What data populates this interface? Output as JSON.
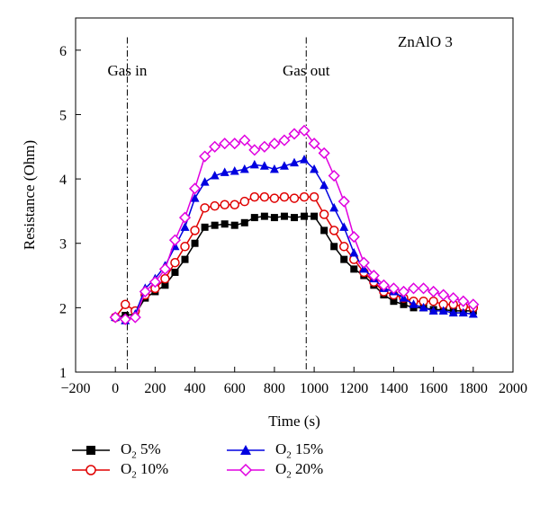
{
  "chart_data": {
    "type": "line",
    "annotation_title": "ZnAlO 3",
    "xlabel": "Time (s)",
    "ylabel": "Resistance (Ohm)",
    "xlim": [
      -200,
      2000
    ],
    "ylim": [
      1,
      6.5
    ],
    "xticks": [
      -200,
      0,
      200,
      400,
      600,
      800,
      1000,
      1200,
      1400,
      1600,
      1800,
      2000
    ],
    "xtick_labels": [
      "−200",
      "0",
      "200",
      "400",
      "600",
      "800",
      "1000",
      "1200",
      "1400",
      "1600",
      "1800",
      "2000"
    ],
    "yticks": [
      1,
      2,
      3,
      4,
      5,
      6
    ],
    "ytick_labels": [
      "1",
      "2",
      "3",
      "4",
      "5",
      "6"
    ],
    "grid": false,
    "legend_position": "below",
    "vlines": [
      {
        "x": 60,
        "label": "Gas in"
      },
      {
        "x": 960,
        "label": "Gas out"
      }
    ],
    "series": [
      {
        "name": "O2 5%",
        "legend_text": "O",
        "legend_sub": "2",
        "legend_suffix": " 5%",
        "color": "#000000",
        "marker": "square-filled",
        "x": [
          0,
          50,
          100,
          150,
          200,
          250,
          300,
          350,
          400,
          450,
          500,
          550,
          600,
          650,
          700,
          750,
          800,
          850,
          900,
          950,
          1000,
          1050,
          1100,
          1150,
          1200,
          1250,
          1300,
          1350,
          1400,
          1450,
          1500,
          1550,
          1600,
          1650,
          1700,
          1750,
          1800
        ],
        "y": [
          1.85,
          1.88,
          1.9,
          2.15,
          2.25,
          2.35,
          2.55,
          2.75,
          3.0,
          3.25,
          3.28,
          3.3,
          3.28,
          3.32,
          3.4,
          3.42,
          3.4,
          3.42,
          3.4,
          3.42,
          3.42,
          3.2,
          2.95,
          2.75,
          2.6,
          2.5,
          2.35,
          2.2,
          2.1,
          2.05,
          2.0,
          2.0,
          1.97,
          1.97,
          1.95,
          1.95,
          1.95
        ]
      },
      {
        "name": "O2 10%",
        "legend_text": "O",
        "legend_sub": "2",
        "legend_suffix": " 10%",
        "color": "#e00000",
        "marker": "circle-open",
        "x": [
          0,
          50,
          100,
          150,
          200,
          250,
          300,
          350,
          400,
          450,
          500,
          550,
          600,
          650,
          700,
          750,
          800,
          850,
          900,
          950,
          1000,
          1050,
          1100,
          1150,
          1200,
          1250,
          1300,
          1350,
          1400,
          1450,
          1500,
          1550,
          1600,
          1650,
          1700,
          1750,
          1800
        ],
        "y": [
          1.85,
          2.05,
          1.95,
          2.2,
          2.3,
          2.45,
          2.7,
          2.95,
          3.2,
          3.55,
          3.58,
          3.6,
          3.6,
          3.65,
          3.72,
          3.72,
          3.7,
          3.72,
          3.7,
          3.72,
          3.72,
          3.45,
          3.2,
          2.95,
          2.75,
          2.55,
          2.4,
          2.25,
          2.2,
          2.15,
          2.1,
          2.1,
          2.1,
          2.05,
          2.05,
          2.02,
          2.0
        ]
      },
      {
        "name": "O2 15%",
        "legend_text": "O",
        "legend_sub": "2",
        "legend_suffix": " 15%",
        "color": "#0000e0",
        "marker": "triangle-filled",
        "x": [
          0,
          50,
          100,
          150,
          200,
          250,
          300,
          350,
          400,
          450,
          500,
          550,
          600,
          650,
          700,
          750,
          800,
          850,
          900,
          950,
          1000,
          1050,
          1100,
          1150,
          1200,
          1250,
          1300,
          1350,
          1400,
          1450,
          1500,
          1550,
          1600,
          1650,
          1700,
          1750,
          1800
        ],
        "y": [
          1.85,
          1.8,
          1.9,
          2.3,
          2.45,
          2.65,
          2.95,
          3.25,
          3.7,
          3.95,
          4.05,
          4.1,
          4.12,
          4.15,
          4.22,
          4.2,
          4.15,
          4.2,
          4.25,
          4.3,
          4.15,
          3.9,
          3.55,
          3.25,
          2.85,
          2.6,
          2.45,
          2.3,
          2.25,
          2.15,
          2.05,
          2.0,
          1.95,
          1.95,
          1.92,
          1.92,
          1.9
        ]
      },
      {
        "name": "O2 20%",
        "legend_text": "O",
        "legend_sub": "2",
        "legend_suffix": " 20%",
        "color": "#e000e0",
        "marker": "diamond-open",
        "x": [
          0,
          50,
          100,
          150,
          200,
          250,
          300,
          350,
          400,
          450,
          500,
          550,
          600,
          650,
          700,
          750,
          800,
          850,
          900,
          950,
          1000,
          1050,
          1100,
          1150,
          1200,
          1250,
          1300,
          1350,
          1400,
          1450,
          1500,
          1550,
          1600,
          1650,
          1700,
          1750,
          1800
        ],
        "y": [
          1.85,
          1.82,
          1.85,
          2.25,
          2.4,
          2.6,
          3.05,
          3.4,
          3.85,
          4.35,
          4.5,
          4.55,
          4.55,
          4.6,
          4.45,
          4.5,
          4.55,
          4.6,
          4.7,
          4.75,
          4.55,
          4.4,
          4.05,
          3.65,
          3.1,
          2.7,
          2.5,
          2.35,
          2.3,
          2.25,
          2.3,
          2.3,
          2.25,
          2.2,
          2.15,
          2.1,
          2.05
        ]
      }
    ]
  }
}
